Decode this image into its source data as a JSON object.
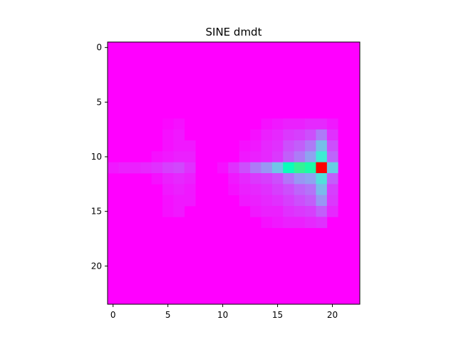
{
  "chart_data": {
    "type": "heatmap",
    "title": "SINE dmdt",
    "xlabel": "",
    "ylabel": "",
    "colormap": "rainbow",
    "x_range": [
      -0.5,
      22.5
    ],
    "y_range": [
      23.5,
      -0.5
    ],
    "xticks": [
      0,
      5,
      10,
      15,
      20
    ],
    "yticks": [
      0,
      5,
      10,
      15,
      20
    ],
    "xtick_labels": [
      "0",
      "5",
      "10",
      "15",
      "20"
    ],
    "ytick_labels": [
      "0",
      "5",
      "10",
      "15",
      "20"
    ],
    "grid": false,
    "n_rows": 24,
    "n_cols": 23,
    "value_range": [
      0,
      1
    ],
    "cells": [
      {
        "row": 7,
        "col": 5,
        "v": 0.01
      },
      {
        "row": 7,
        "col": 6,
        "v": 0.02
      },
      {
        "row": 7,
        "col": 14,
        "v": 0.02
      },
      {
        "row": 7,
        "col": 15,
        "v": 0.03
      },
      {
        "row": 7,
        "col": 16,
        "v": 0.04
      },
      {
        "row": 7,
        "col": 17,
        "v": 0.04
      },
      {
        "row": 7,
        "col": 18,
        "v": 0.05
      },
      {
        "row": 7,
        "col": 19,
        "v": 0.05
      },
      {
        "row": 7,
        "col": 20,
        "v": 0.03
      },
      {
        "row": 8,
        "col": 5,
        "v": 0.02
      },
      {
        "row": 8,
        "col": 6,
        "v": 0.03
      },
      {
        "row": 8,
        "col": 13,
        "v": 0.02
      },
      {
        "row": 8,
        "col": 14,
        "v": 0.04
      },
      {
        "row": 8,
        "col": 15,
        "v": 0.05
      },
      {
        "row": 8,
        "col": 16,
        "v": 0.07
      },
      {
        "row": 8,
        "col": 17,
        "v": 0.08
      },
      {
        "row": 8,
        "col": 18,
        "v": 0.1
      },
      {
        "row": 8,
        "col": 19,
        "v": 0.16
      },
      {
        "row": 8,
        "col": 20,
        "v": 0.06
      },
      {
        "row": 9,
        "col": 5,
        "v": 0.02
      },
      {
        "row": 9,
        "col": 6,
        "v": 0.03
      },
      {
        "row": 9,
        "col": 7,
        "v": 0.03
      },
      {
        "row": 9,
        "col": 12,
        "v": 0.02
      },
      {
        "row": 9,
        "col": 13,
        "v": 0.03
      },
      {
        "row": 9,
        "col": 14,
        "v": 0.05
      },
      {
        "row": 9,
        "col": 15,
        "v": 0.06
      },
      {
        "row": 9,
        "col": 16,
        "v": 0.1
      },
      {
        "row": 9,
        "col": 17,
        "v": 0.12
      },
      {
        "row": 9,
        "col": 18,
        "v": 0.16
      },
      {
        "row": 9,
        "col": 19,
        "v": 0.27
      },
      {
        "row": 9,
        "col": 20,
        "v": 0.1
      },
      {
        "row": 10,
        "col": 4,
        "v": 0.02
      },
      {
        "row": 10,
        "col": 5,
        "v": 0.03
      },
      {
        "row": 10,
        "col": 6,
        "v": 0.04
      },
      {
        "row": 10,
        "col": 7,
        "v": 0.04
      },
      {
        "row": 10,
        "col": 12,
        "v": 0.03
      },
      {
        "row": 10,
        "col": 13,
        "v": 0.04
      },
      {
        "row": 10,
        "col": 14,
        "v": 0.05
      },
      {
        "row": 10,
        "col": 15,
        "v": 0.07
      },
      {
        "row": 10,
        "col": 16,
        "v": 0.12
      },
      {
        "row": 10,
        "col": 17,
        "v": 0.16
      },
      {
        "row": 10,
        "col": 18,
        "v": 0.22
      },
      {
        "row": 10,
        "col": 19,
        "v": 0.38
      },
      {
        "row": 10,
        "col": 20,
        "v": 0.13
      },
      {
        "row": 11,
        "col": 0,
        "v": 0.03
      },
      {
        "row": 11,
        "col": 1,
        "v": 0.04
      },
      {
        "row": 11,
        "col": 2,
        "v": 0.04
      },
      {
        "row": 11,
        "col": 3,
        "v": 0.05
      },
      {
        "row": 11,
        "col": 4,
        "v": 0.06
      },
      {
        "row": 11,
        "col": 5,
        "v": 0.08
      },
      {
        "row": 11,
        "col": 6,
        "v": 0.09
      },
      {
        "row": 11,
        "col": 7,
        "v": 0.06
      },
      {
        "row": 11,
        "col": 10,
        "v": 0.02
      },
      {
        "row": 11,
        "col": 11,
        "v": 0.06
      },
      {
        "row": 11,
        "col": 12,
        "v": 0.1
      },
      {
        "row": 11,
        "col": 13,
        "v": 0.16
      },
      {
        "row": 11,
        "col": 14,
        "v": 0.2
      },
      {
        "row": 11,
        "col": 15,
        "v": 0.28
      },
      {
        "row": 11,
        "col": 16,
        "v": 0.48
      },
      {
        "row": 11,
        "col": 17,
        "v": 0.6
      },
      {
        "row": 11,
        "col": 18,
        "v": 0.55
      },
      {
        "row": 11,
        "col": 19,
        "v": 1.0
      },
      {
        "row": 11,
        "col": 20,
        "v": 0.3
      },
      {
        "row": 12,
        "col": 4,
        "v": 0.02
      },
      {
        "row": 12,
        "col": 5,
        "v": 0.04
      },
      {
        "row": 12,
        "col": 6,
        "v": 0.05
      },
      {
        "row": 12,
        "col": 7,
        "v": 0.04
      },
      {
        "row": 12,
        "col": 11,
        "v": 0.03
      },
      {
        "row": 12,
        "col": 12,
        "v": 0.05
      },
      {
        "row": 12,
        "col": 13,
        "v": 0.07
      },
      {
        "row": 12,
        "col": 14,
        "v": 0.08
      },
      {
        "row": 12,
        "col": 15,
        "v": 0.1
      },
      {
        "row": 12,
        "col": 16,
        "v": 0.15
      },
      {
        "row": 12,
        "col": 17,
        "v": 0.2
      },
      {
        "row": 12,
        "col": 18,
        "v": 0.22
      },
      {
        "row": 12,
        "col": 19,
        "v": 0.34
      },
      {
        "row": 12,
        "col": 20,
        "v": 0.12
      },
      {
        "row": 13,
        "col": 5,
        "v": 0.03
      },
      {
        "row": 13,
        "col": 6,
        "v": 0.04
      },
      {
        "row": 13,
        "col": 7,
        "v": 0.03
      },
      {
        "row": 13,
        "col": 11,
        "v": 0.02
      },
      {
        "row": 13,
        "col": 12,
        "v": 0.04
      },
      {
        "row": 13,
        "col": 13,
        "v": 0.05
      },
      {
        "row": 13,
        "col": 14,
        "v": 0.06
      },
      {
        "row": 13,
        "col": 15,
        "v": 0.08
      },
      {
        "row": 13,
        "col": 16,
        "v": 0.1
      },
      {
        "row": 13,
        "col": 17,
        "v": 0.13
      },
      {
        "row": 13,
        "col": 18,
        "v": 0.15
      },
      {
        "row": 13,
        "col": 19,
        "v": 0.26
      },
      {
        "row": 13,
        "col": 20,
        "v": 0.08
      },
      {
        "row": 14,
        "col": 5,
        "v": 0.02
      },
      {
        "row": 14,
        "col": 6,
        "v": 0.03
      },
      {
        "row": 14,
        "col": 7,
        "v": 0.03
      },
      {
        "row": 14,
        "col": 12,
        "v": 0.03
      },
      {
        "row": 14,
        "col": 13,
        "v": 0.04
      },
      {
        "row": 14,
        "col": 14,
        "v": 0.05
      },
      {
        "row": 14,
        "col": 15,
        "v": 0.06
      },
      {
        "row": 14,
        "col": 16,
        "v": 0.08
      },
      {
        "row": 14,
        "col": 17,
        "v": 0.1
      },
      {
        "row": 14,
        "col": 18,
        "v": 0.12
      },
      {
        "row": 14,
        "col": 19,
        "v": 0.2
      },
      {
        "row": 14,
        "col": 20,
        "v": 0.07
      },
      {
        "row": 15,
        "col": 5,
        "v": 0.02
      },
      {
        "row": 15,
        "col": 6,
        "v": 0.03
      },
      {
        "row": 15,
        "col": 13,
        "v": 0.03
      },
      {
        "row": 15,
        "col": 14,
        "v": 0.04
      },
      {
        "row": 15,
        "col": 15,
        "v": 0.04
      },
      {
        "row": 15,
        "col": 16,
        "v": 0.06
      },
      {
        "row": 15,
        "col": 17,
        "v": 0.07
      },
      {
        "row": 15,
        "col": 18,
        "v": 0.08
      },
      {
        "row": 15,
        "col": 19,
        "v": 0.12
      },
      {
        "row": 15,
        "col": 20,
        "v": 0.05
      },
      {
        "row": 16,
        "col": 14,
        "v": 0.02
      },
      {
        "row": 16,
        "col": 15,
        "v": 0.03
      },
      {
        "row": 16,
        "col": 16,
        "v": 0.04
      },
      {
        "row": 16,
        "col": 17,
        "v": 0.04
      },
      {
        "row": 16,
        "col": 18,
        "v": 0.05
      },
      {
        "row": 16,
        "col": 19,
        "v": 0.06
      }
    ]
  }
}
